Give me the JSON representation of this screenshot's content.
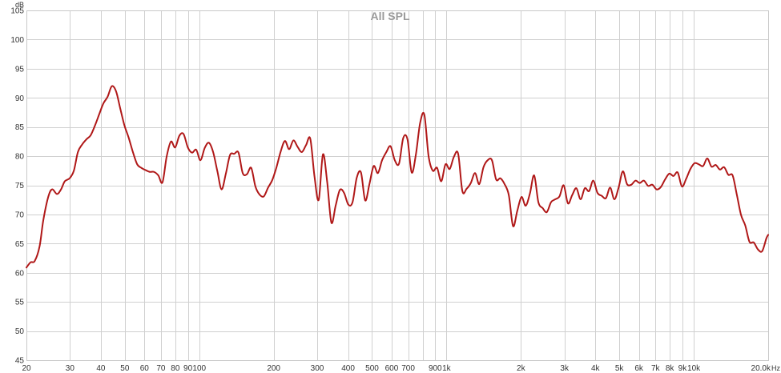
{
  "chart_data": {
    "type": "line",
    "title": "All SPL",
    "y_unit": "dB",
    "x_unit": "Hz",
    "x_scale": "log",
    "xlim": [
      20,
      20000
    ],
    "ylim": [
      45,
      105
    ],
    "grid": true,
    "x_ticks": [
      {
        "value": 20,
        "label": "20"
      },
      {
        "value": 30,
        "label": "30"
      },
      {
        "value": 40,
        "label": "40"
      },
      {
        "value": 50,
        "label": "50"
      },
      {
        "value": 60,
        "label": "60"
      },
      {
        "value": 70,
        "label": "70"
      },
      {
        "value": 80,
        "label": "80"
      },
      {
        "value": 90,
        "label": "90"
      },
      {
        "value": 100,
        "label": "100"
      },
      {
        "value": 200,
        "label": "200"
      },
      {
        "value": 300,
        "label": "300"
      },
      {
        "value": 400,
        "label": "400"
      },
      {
        "value": 500,
        "label": "500"
      },
      {
        "value": 600,
        "label": "600"
      },
      {
        "value": 700,
        "label": "700"
      },
      {
        "value": 800,
        "label": ""
      },
      {
        "value": 900,
        "label": "900"
      },
      {
        "value": 1000,
        "label": "1k"
      },
      {
        "value": 2000,
        "label": "2k"
      },
      {
        "value": 3000,
        "label": "3k"
      },
      {
        "value": 4000,
        "label": "4k"
      },
      {
        "value": 5000,
        "label": "5k"
      },
      {
        "value": 6000,
        "label": "6k"
      },
      {
        "value": 7000,
        "label": "7k"
      },
      {
        "value": 8000,
        "label": "8k"
      },
      {
        "value": 9000,
        "label": "9k"
      },
      {
        "value": 10000,
        "label": "10k"
      },
      {
        "value": 20000,
        "label": "20.0k"
      }
    ],
    "y_ticks": [
      {
        "value": 45,
        "label": "45"
      },
      {
        "value": 50,
        "label": "50"
      },
      {
        "value": 55,
        "label": "55"
      },
      {
        "value": 60,
        "label": "60"
      },
      {
        "value": 65,
        "label": "65"
      },
      {
        "value": 70,
        "label": "70"
      },
      {
        "value": 75,
        "label": "75"
      },
      {
        "value": 80,
        "label": "80"
      },
      {
        "value": 85,
        "label": "85"
      },
      {
        "value": 90,
        "label": "90"
      },
      {
        "value": 95,
        "label": "95"
      },
      {
        "value": 100,
        "label": "100"
      },
      {
        "value": 105,
        "label": "105"
      }
    ],
    "series": [
      {
        "color": "#b01818",
        "points": [
          [
            20.0,
            60.9
          ],
          [
            20.8,
            61.8
          ],
          [
            21.6,
            62.0
          ],
          [
            22.6,
            64.5
          ],
          [
            23.4,
            69.0
          ],
          [
            24.5,
            73.0
          ],
          [
            25.4,
            74.3
          ],
          [
            26.6,
            73.5
          ],
          [
            27.6,
            74.3
          ],
          [
            28.6,
            75.7
          ],
          [
            29.9,
            76.2
          ],
          [
            31.1,
            77.5
          ],
          [
            32.3,
            80.7
          ],
          [
            33.6,
            82.0
          ],
          [
            35.0,
            82.9
          ],
          [
            36.4,
            83.6
          ],
          [
            37.9,
            85.3
          ],
          [
            39.4,
            87.2
          ],
          [
            40.9,
            89.0
          ],
          [
            42.6,
            90.2
          ],
          [
            44.3,
            92.0
          ],
          [
            46.1,
            91.1
          ],
          [
            47.9,
            88.2
          ],
          [
            49.8,
            85.3
          ],
          [
            51.8,
            83.2
          ],
          [
            53.9,
            80.7
          ],
          [
            56.1,
            78.6
          ],
          [
            58.3,
            78.0
          ],
          [
            60.7,
            77.6
          ],
          [
            63.1,
            77.3
          ],
          [
            65.6,
            77.3
          ],
          [
            68.3,
            76.7
          ],
          [
            71.0,
            75.5
          ],
          [
            73.8,
            79.9
          ],
          [
            76.8,
            82.5
          ],
          [
            79.9,
            81.5
          ],
          [
            83.1,
            83.5
          ],
          [
            86.4,
            83.8
          ],
          [
            89.9,
            81.5
          ],
          [
            93.5,
            80.6
          ],
          [
            97.2,
            81.1
          ],
          [
            101.1,
            79.3
          ],
          [
            105.2,
            81.4
          ],
          [
            109.4,
            82.3
          ],
          [
            113.8,
            80.7
          ],
          [
            118.4,
            77.4
          ],
          [
            123.1,
            74.3
          ],
          [
            128.1,
            77.0
          ],
          [
            133.2,
            80.2
          ],
          [
            138.5,
            80.4
          ],
          [
            144.1,
            80.6
          ],
          [
            149.9,
            77.1
          ],
          [
            155.9,
            76.9
          ],
          [
            162.2,
            78.0
          ],
          [
            168.7,
            74.8
          ],
          [
            175.4,
            73.4
          ],
          [
            182.4,
            73.1
          ],
          [
            189.8,
            74.6
          ],
          [
            197.4,
            75.9
          ],
          [
            205.3,
            78.1
          ],
          [
            213.5,
            80.8
          ],
          [
            222.1,
            82.6
          ],
          [
            231.0,
            81.2
          ],
          [
            240.3,
            82.7
          ],
          [
            249.9,
            81.6
          ],
          [
            259.9,
            80.7
          ],
          [
            270.4,
            81.9
          ],
          [
            281.2,
            83.0
          ],
          [
            292.5,
            76.5
          ],
          [
            304.2,
            72.5
          ],
          [
            316.4,
            80.3
          ],
          [
            329.1,
            75.6
          ],
          [
            342.3,
            68.6
          ],
          [
            356.1,
            71.5
          ],
          [
            370.4,
            74.2
          ],
          [
            385.2,
            73.7
          ],
          [
            400.7,
            71.7
          ],
          [
            416.8,
            72.1
          ],
          [
            433.5,
            76.3
          ],
          [
            450.9,
            77.2
          ],
          [
            469.0,
            72.4
          ],
          [
            487.8,
            75.2
          ],
          [
            507.4,
            78.3
          ],
          [
            527.8,
            77.1
          ],
          [
            548.9,
            79.3
          ],
          [
            571.0,
            80.7
          ],
          [
            593.9,
            81.7
          ],
          [
            617.7,
            79.3
          ],
          [
            642.5,
            78.7
          ],
          [
            668.3,
            83.1
          ],
          [
            695.1,
            82.9
          ],
          [
            723.0,
            77.2
          ],
          [
            752.0,
            80.3
          ],
          [
            782.2,
            85.7
          ],
          [
            813.6,
            87.1
          ],
          [
            846.3,
            80.0
          ],
          [
            880.3,
            77.5
          ],
          [
            915.6,
            78.0
          ],
          [
            952.3,
            75.7
          ],
          [
            990.6,
            78.6
          ],
          [
            1030.3,
            77.8
          ],
          [
            1071.6,
            79.9
          ],
          [
            1114.6,
            80.4
          ],
          [
            1159.3,
            74.0
          ],
          [
            1205.8,
            74.4
          ],
          [
            1254.1,
            75.4
          ],
          [
            1304.4,
            77.1
          ],
          [
            1356.7,
            75.2
          ],
          [
            1411.1,
            78.1
          ],
          [
            1467.7,
            79.3
          ],
          [
            1526.6,
            79.3
          ],
          [
            1587.8,
            76.0
          ],
          [
            1651.5,
            76.2
          ],
          [
            1717.7,
            75.2
          ],
          [
            1786.6,
            73.3
          ],
          [
            1858.3,
            68.0
          ],
          [
            1932.8,
            70.6
          ],
          [
            2010.3,
            73.0
          ],
          [
            2090.9,
            71.5
          ],
          [
            2174.8,
            73.6
          ],
          [
            2262.0,
            76.7
          ],
          [
            2352.7,
            72.1
          ],
          [
            2447.1,
            71.1
          ],
          [
            2545.2,
            70.4
          ],
          [
            2647.3,
            72.1
          ],
          [
            2753.4,
            72.6
          ],
          [
            2863.9,
            73.1
          ],
          [
            2978.7,
            75.0
          ],
          [
            3098.2,
            71.9
          ],
          [
            3222.4,
            73.3
          ],
          [
            3351.7,
            74.5
          ],
          [
            3486.1,
            72.6
          ],
          [
            3625.9,
            74.5
          ],
          [
            3771.3,
            74.0
          ],
          [
            3922.5,
            75.8
          ],
          [
            4079.9,
            73.7
          ],
          [
            4243.5,
            73.2
          ],
          [
            4413.7,
            72.8
          ],
          [
            4590.7,
            74.6
          ],
          [
            4774.8,
            72.6
          ],
          [
            4966.3,
            74.6
          ],
          [
            5165.5,
            77.4
          ],
          [
            5372.7,
            75.2
          ],
          [
            5588.1,
            75.1
          ],
          [
            5812.2,
            75.8
          ],
          [
            6045.3,
            75.4
          ],
          [
            6287.8,
            75.8
          ],
          [
            6540.0,
            74.9
          ],
          [
            6802.3,
            75.1
          ],
          [
            7075.1,
            74.3
          ],
          [
            7358.9,
            74.7
          ],
          [
            7654.0,
            76.0
          ],
          [
            7961.0,
            77.0
          ],
          [
            8280.3,
            76.6
          ],
          [
            8612.4,
            77.2
          ],
          [
            8957.7,
            74.8
          ],
          [
            9317.0,
            76.1
          ],
          [
            9690.7,
            77.8
          ],
          [
            10079.4,
            78.8
          ],
          [
            10483.6,
            78.6
          ],
          [
            10904.0,
            78.3
          ],
          [
            11341.4,
            79.6
          ],
          [
            11796.2,
            78.2
          ],
          [
            12269.3,
            78.5
          ],
          [
            12761.4,
            77.7
          ],
          [
            13273.2,
            78.1
          ],
          [
            13805.6,
            76.8
          ],
          [
            14359.2,
            76.7
          ],
          [
            14935.1,
            73.4
          ],
          [
            15534.1,
            69.9
          ],
          [
            16157.2,
            68.1
          ],
          [
            16805.2,
            65.3
          ],
          [
            17479.1,
            65.2
          ],
          [
            18180.2,
            64.0
          ],
          [
            18909.3,
            63.7
          ],
          [
            19667.7,
            65.9
          ],
          [
            20000.0,
            66.5
          ]
        ]
      }
    ]
  }
}
